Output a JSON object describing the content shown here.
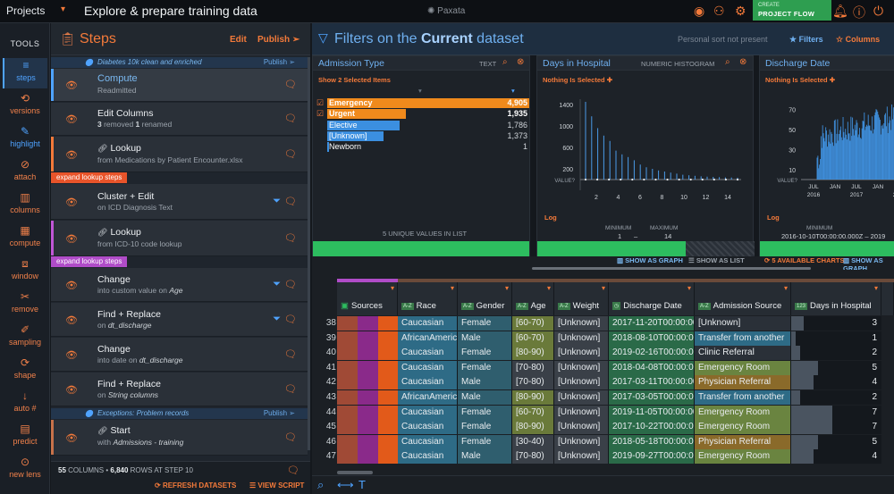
{
  "topbar": {
    "projects_label": "Projects",
    "title": "Explore & prepare training data",
    "logo": "Paxata",
    "create_top": "CREATE",
    "create_label": "PROJECT FLOW",
    "icons": [
      "eye-icon",
      "share-icon",
      "cog-icon",
      "bell-icon",
      "info-icon",
      "power-icon"
    ]
  },
  "tools": {
    "header": "TOOLS",
    "items": [
      {
        "label": "steps",
        "icon": "≡"
      },
      {
        "label": "versions",
        "icon": "⟲"
      },
      {
        "label": "highlight",
        "icon": "✎"
      },
      {
        "label": "attach",
        "icon": "⊘"
      },
      {
        "label": "columns",
        "icon": "▥"
      },
      {
        "label": "compute",
        "icon": "▦"
      },
      {
        "label": "window",
        "icon": "⧈"
      },
      {
        "label": "remove",
        "icon": "✂"
      },
      {
        "label": "sampling",
        "icon": "✐"
      },
      {
        "label": "shape",
        "icon": "⟳"
      },
      {
        "label": "auto #",
        "icon": "↓"
      },
      {
        "label": "predict",
        "icon": "▤"
      },
      {
        "label": "new lens",
        "icon": "⊙"
      }
    ]
  },
  "steps": {
    "title": "Steps",
    "edit": "Edit",
    "publish": "Publish",
    "dataset1": {
      "name": "Diabetes 10k clean and enriched",
      "publish": "Publish"
    },
    "dataset2": {
      "name": "Exceptions: Problem records",
      "publish": "Publish"
    },
    "items": [
      {
        "title": "Compute",
        "sub": "Readmitted"
      },
      {
        "title": "Edit Columns",
        "sub_a": "3",
        "sub_b": " removed ",
        "sub_c": "1",
        "sub_d": " renamed"
      },
      {
        "title": "Lookup",
        "sub": "from Medications by Patient Encounter.xlsx"
      },
      {
        "title": "Cluster + Edit",
        "sub": "on ICD Diagnosis Text"
      },
      {
        "title": "Lookup",
        "sub": "from ICD-10 code lookup"
      },
      {
        "title": "Change",
        "sub_pre": "into custom value",
        "sub_on": " on ",
        "sub_field": "Age"
      },
      {
        "title": "Find + Replace",
        "sub_on": "on ",
        "sub_field": "dt_discharge"
      },
      {
        "title": "Change",
        "sub_pre": "into date",
        "sub_on": " on ",
        "sub_field": "dt_discharge"
      },
      {
        "title": "Find + Replace",
        "sub_on": "on ",
        "sub_field": "String columns"
      },
      {
        "title": "Start",
        "sub_pre": "with ",
        "sub_field": "Admissions - training"
      }
    ],
    "expand1": "expand lookup steps",
    "expand2": "expand lookup steps",
    "columns": "55",
    "columns_label": " COLUMNS • ",
    "rows": "6,840",
    "rows_label": " ROWS AT STEP 10",
    "refresh": "REFRESH DATASETS",
    "view_script": "VIEW SCRIPT"
  },
  "filters": {
    "title_pre": "Filters on the ",
    "title_bold": "Current",
    "title_post": " dataset",
    "personal": "Personal sort not present",
    "filters_label": "Filters",
    "columns_label": "Columns"
  },
  "cards": {
    "admission": {
      "name": "Admission Type",
      "type": "TEXT",
      "selection": "Show 2 Selected Items",
      "values": [
        {
          "label": "Emergency",
          "count": "4,905",
          "frac": 1.0,
          "selected": true
        },
        {
          "label": "Urgent",
          "count": "1,935",
          "frac": 0.39,
          "selected": true
        },
        {
          "label": "Elective",
          "count": "1,786",
          "frac": 0.36,
          "selected": false
        },
        {
          "label": "[Unknown]",
          "count": "1,373",
          "frac": 0.28,
          "selected": false
        },
        {
          "label": "Newborn",
          "count": "1",
          "frac": 0.0,
          "selected": false
        }
      ],
      "unique": "5 UNIQUE VALUES IN LIST"
    },
    "days": {
      "name": "Days in Hospital",
      "type": "NUMERIC HISTOGRAM",
      "selection": "Nothing Is Selected",
      "yticks": [
        "1400",
        "1000",
        "600",
        "200",
        "VALUE?"
      ],
      "xticks": [
        "2",
        "4",
        "6",
        "8",
        "10",
        "12",
        "14"
      ],
      "log": "Log",
      "min_label": "MINIMUM",
      "max_label": "MAXIMUM",
      "min": "1",
      "max": "14",
      "histogram": [
        1450,
        1180,
        960,
        820,
        720,
        540,
        470,
        420,
        360,
        280,
        230,
        200,
        170,
        150,
        130,
        110,
        90,
        80,
        70,
        60,
        55,
        50,
        45,
        40,
        38,
        35
      ]
    },
    "discharge": {
      "name": "Discharge Date",
      "selection": "Nothing Is Selected",
      "yticks": [
        "70",
        "50",
        "30",
        "10",
        "VALUE?"
      ],
      "xticks": [
        "JUL",
        "JAN",
        "JUL",
        "JAN"
      ],
      "years": [
        "2016",
        "2017",
        "2018"
      ],
      "log": "Log",
      "min_label": "MINIMUM",
      "range": "2016-10-10T00:00:00.000Z  –  2019"
    },
    "links": {
      "graph": "SHOW AS GRAPH",
      "list": "SHOW AS LIST",
      "available": "5 AVAILABLE CHARTS",
      "graph2": "SHOW AS GRAPH"
    }
  },
  "grid": {
    "headers": [
      {
        "name": "Sources",
        "type": "",
        "icon": "sources-icon"
      },
      {
        "name": "Race",
        "type": "A-Z"
      },
      {
        "name": "Gender",
        "type": "A-Z"
      },
      {
        "name": "Age",
        "type": "A-Z"
      },
      {
        "name": "Weight",
        "type": "A-Z"
      },
      {
        "name": "Discharge Date",
        "type": "◷"
      },
      {
        "name": "Admission Source",
        "type": "A-Z"
      },
      {
        "name": "Days in Hospital",
        "type": "123"
      }
    ],
    "rows": [
      {
        "n": "38",
        "race": "Caucasian",
        "gender": "Female",
        "age": "[60-70)",
        "weight": "[Unknown]",
        "date": "2017-11-20T00:00:00",
        "src": "[Unknown]",
        "days": "3",
        "dayfrac": 0.14
      },
      {
        "n": "39",
        "race": "AfricanAmerican",
        "gender": "Male",
        "age": "[60-70)",
        "weight": "[Unknown]",
        "date": "2018-08-10T00:00:00",
        "src": "Transfer from another",
        "days": "1",
        "dayfrac": 0.05
      },
      {
        "n": "40",
        "race": "Caucasian",
        "gender": "Female",
        "age": "[80-90)",
        "weight": "[Unknown]",
        "date": "2019-02-16T00:00:00",
        "src": "Clinic Referral",
        "days": "2",
        "dayfrac": 0.1
      },
      {
        "n": "41",
        "race": "Caucasian",
        "gender": "Female",
        "age": "[70-80)",
        "weight": "[Unknown]",
        "date": "2018-04-08T00:00:00",
        "src": "Emergency Room",
        "days": "5",
        "dayfrac": 0.3
      },
      {
        "n": "42",
        "race": "Caucasian",
        "gender": "Male",
        "age": "[70-80)",
        "weight": "[Unknown]",
        "date": "2017-03-11T00:00:00",
        "src": "Physician Referral",
        "days": "4",
        "dayfrac": 0.25
      },
      {
        "n": "43",
        "race": "AfricanAmerican",
        "gender": "Male",
        "age": "[80-90)",
        "weight": "[Unknown]",
        "date": "2017-03-05T00:00:00",
        "src": "Transfer from another",
        "days": "2",
        "dayfrac": 0.1
      },
      {
        "n": "44",
        "race": "Caucasian",
        "gender": "Female",
        "age": "[60-70)",
        "weight": "[Unknown]",
        "date": "2019-11-05T00:00:00",
        "src": "Emergency Room",
        "days": "7",
        "dayfrac": 0.46
      },
      {
        "n": "45",
        "race": "Caucasian",
        "gender": "Female",
        "age": "[80-90)",
        "weight": "[Unknown]",
        "date": "2017-10-22T00:00:00",
        "src": "Emergency Room",
        "days": "7",
        "dayfrac": 0.46
      },
      {
        "n": "46",
        "race": "Caucasian",
        "gender": "Female",
        "age": "[30-40)",
        "weight": "[Unknown]",
        "date": "2018-05-18T00:00:00",
        "src": "Physician Referral",
        "days": "5",
        "dayfrac": 0.3
      },
      {
        "n": "47",
        "race": "Caucasian",
        "gender": "Male",
        "age": "[70-80)",
        "weight": "[Unknown]",
        "date": "2019-09-27T00:00:00",
        "src": "Emergency Room",
        "days": "4",
        "dayfrac": 0.25
      }
    ]
  },
  "colors": {
    "accent_orange": "#f47a3a",
    "accent_blue": "#4fa3ff",
    "selected_bar": "#f08a1c",
    "unselected_bar": "#3b8fe0",
    "green": "#2dbd5f",
    "row_race": "#2e6b86",
    "row_gender": "#2f5e6e",
    "row_age_hi": "#6a7a3a",
    "row_age_lo": "#3a4048",
    "row_date": "#2a6a48",
    "row_emergency": "#6a8440",
    "row_transfer": "#2e6b86",
    "row_physician": "#8a6a2a"
  }
}
